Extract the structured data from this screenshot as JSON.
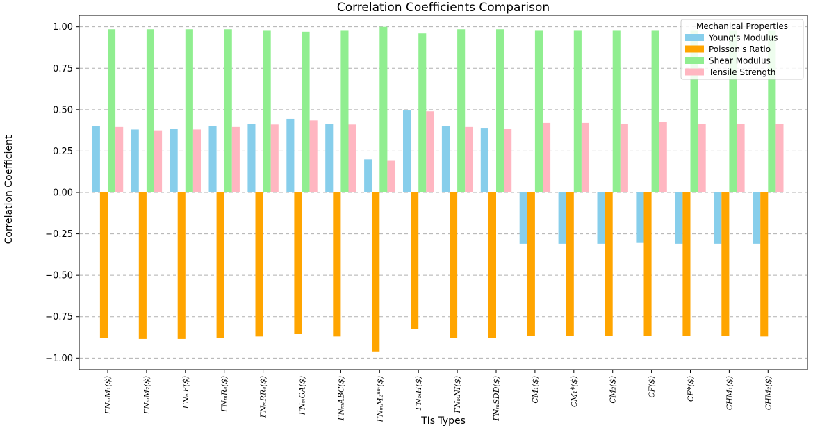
{
  "chart_data": {
    "type": "bar",
    "title": "Correlation Coefficients Comparison",
    "xlabel": "TIs Types",
    "ylabel": "Correlation Coefficient",
    "ylim": [
      -1.07,
      1.07
    ],
    "yticks": [
      -1.0,
      -0.75,
      -0.5,
      -0.25,
      0.0,
      0.25,
      0.5,
      0.75,
      1.0
    ],
    "ytick_labels": [
      "−1.00",
      "−0.75",
      "−0.50",
      "−0.25",
      "0.00",
      "0.25",
      "0.50",
      "0.75",
      "1.00"
    ],
    "grid": "horizontal dashed",
    "legend": {
      "title": "Mechanical Properties",
      "placement": "top-right"
    },
    "categories": [
      "ΓN_M M_1($)",
      "ΓN_M M_2($)",
      "ΓN_M F($)",
      "ΓN_M R_α($)",
      "ΓN_M RR_α($)",
      "ΓN_M GA($)",
      "ΓN_M ABC($)",
      "ΓN_M M_2^{nm}($)",
      "ΓN_M H($)",
      "ΓN_M NI($)",
      "ΓN_M SDD($)",
      "CM_1($)",
      "CM_1^*($)",
      "CM_2($)",
      "CF($)",
      "CF^*($)",
      "CHM_1($)",
      "CHM_2($)"
    ],
    "category_labels": [
      "ΓNₘM₁($)",
      "ΓNₘM₂($)",
      "ΓNₘF($)",
      "ΓNₘRₐ($)",
      "ΓNₘRRₐ($)",
      "ΓNₘGA($)",
      "ΓNₘABC($)",
      "ΓNₘM₂ⁿᵐ($)",
      "ΓNₘH($)",
      "ΓNₘNI($)",
      "ΓNₘSDD($)",
      "CM₁($)",
      "CM₁*($)",
      "CM₂($)",
      "CF($)",
      "CF*($)",
      "CHM₁($)",
      "CHM₂($)"
    ],
    "series": [
      {
        "name": "Young's Modulus",
        "color": "#87ceeb",
        "values": [
          0.4,
          0.38,
          0.385,
          0.4,
          0.415,
          0.445,
          0.415,
          0.2,
          0.495,
          0.4,
          0.39,
          -0.31,
          -0.31,
          -0.31,
          -0.305,
          -0.31,
          -0.31,
          -0.31
        ]
      },
      {
        "name": "Poisson's Ratio",
        "color": "#ffa500",
        "values": [
          -0.88,
          -0.885,
          -0.885,
          -0.88,
          -0.87,
          -0.855,
          -0.87,
          -0.96,
          -0.825,
          -0.88,
          -0.88,
          -0.865,
          -0.865,
          -0.865,
          -0.865,
          -0.865,
          -0.865,
          -0.87
        ]
      },
      {
        "name": "Shear Modulus",
        "color": "#90ee90",
        "values": [
          0.985,
          0.985,
          0.985,
          0.985,
          0.98,
          0.97,
          0.98,
          1.0,
          0.96,
          0.985,
          0.985,
          0.98,
          0.98,
          0.98,
          0.98,
          0.98,
          0.98,
          0.98
        ]
      },
      {
        "name": "Tensile Strength",
        "color": "#ffb6c1",
        "values": [
          0.395,
          0.375,
          0.38,
          0.395,
          0.41,
          0.435,
          0.41,
          0.195,
          0.49,
          0.395,
          0.385,
          0.42,
          0.42,
          0.415,
          0.425,
          0.415,
          0.415,
          0.415
        ]
      }
    ]
  }
}
